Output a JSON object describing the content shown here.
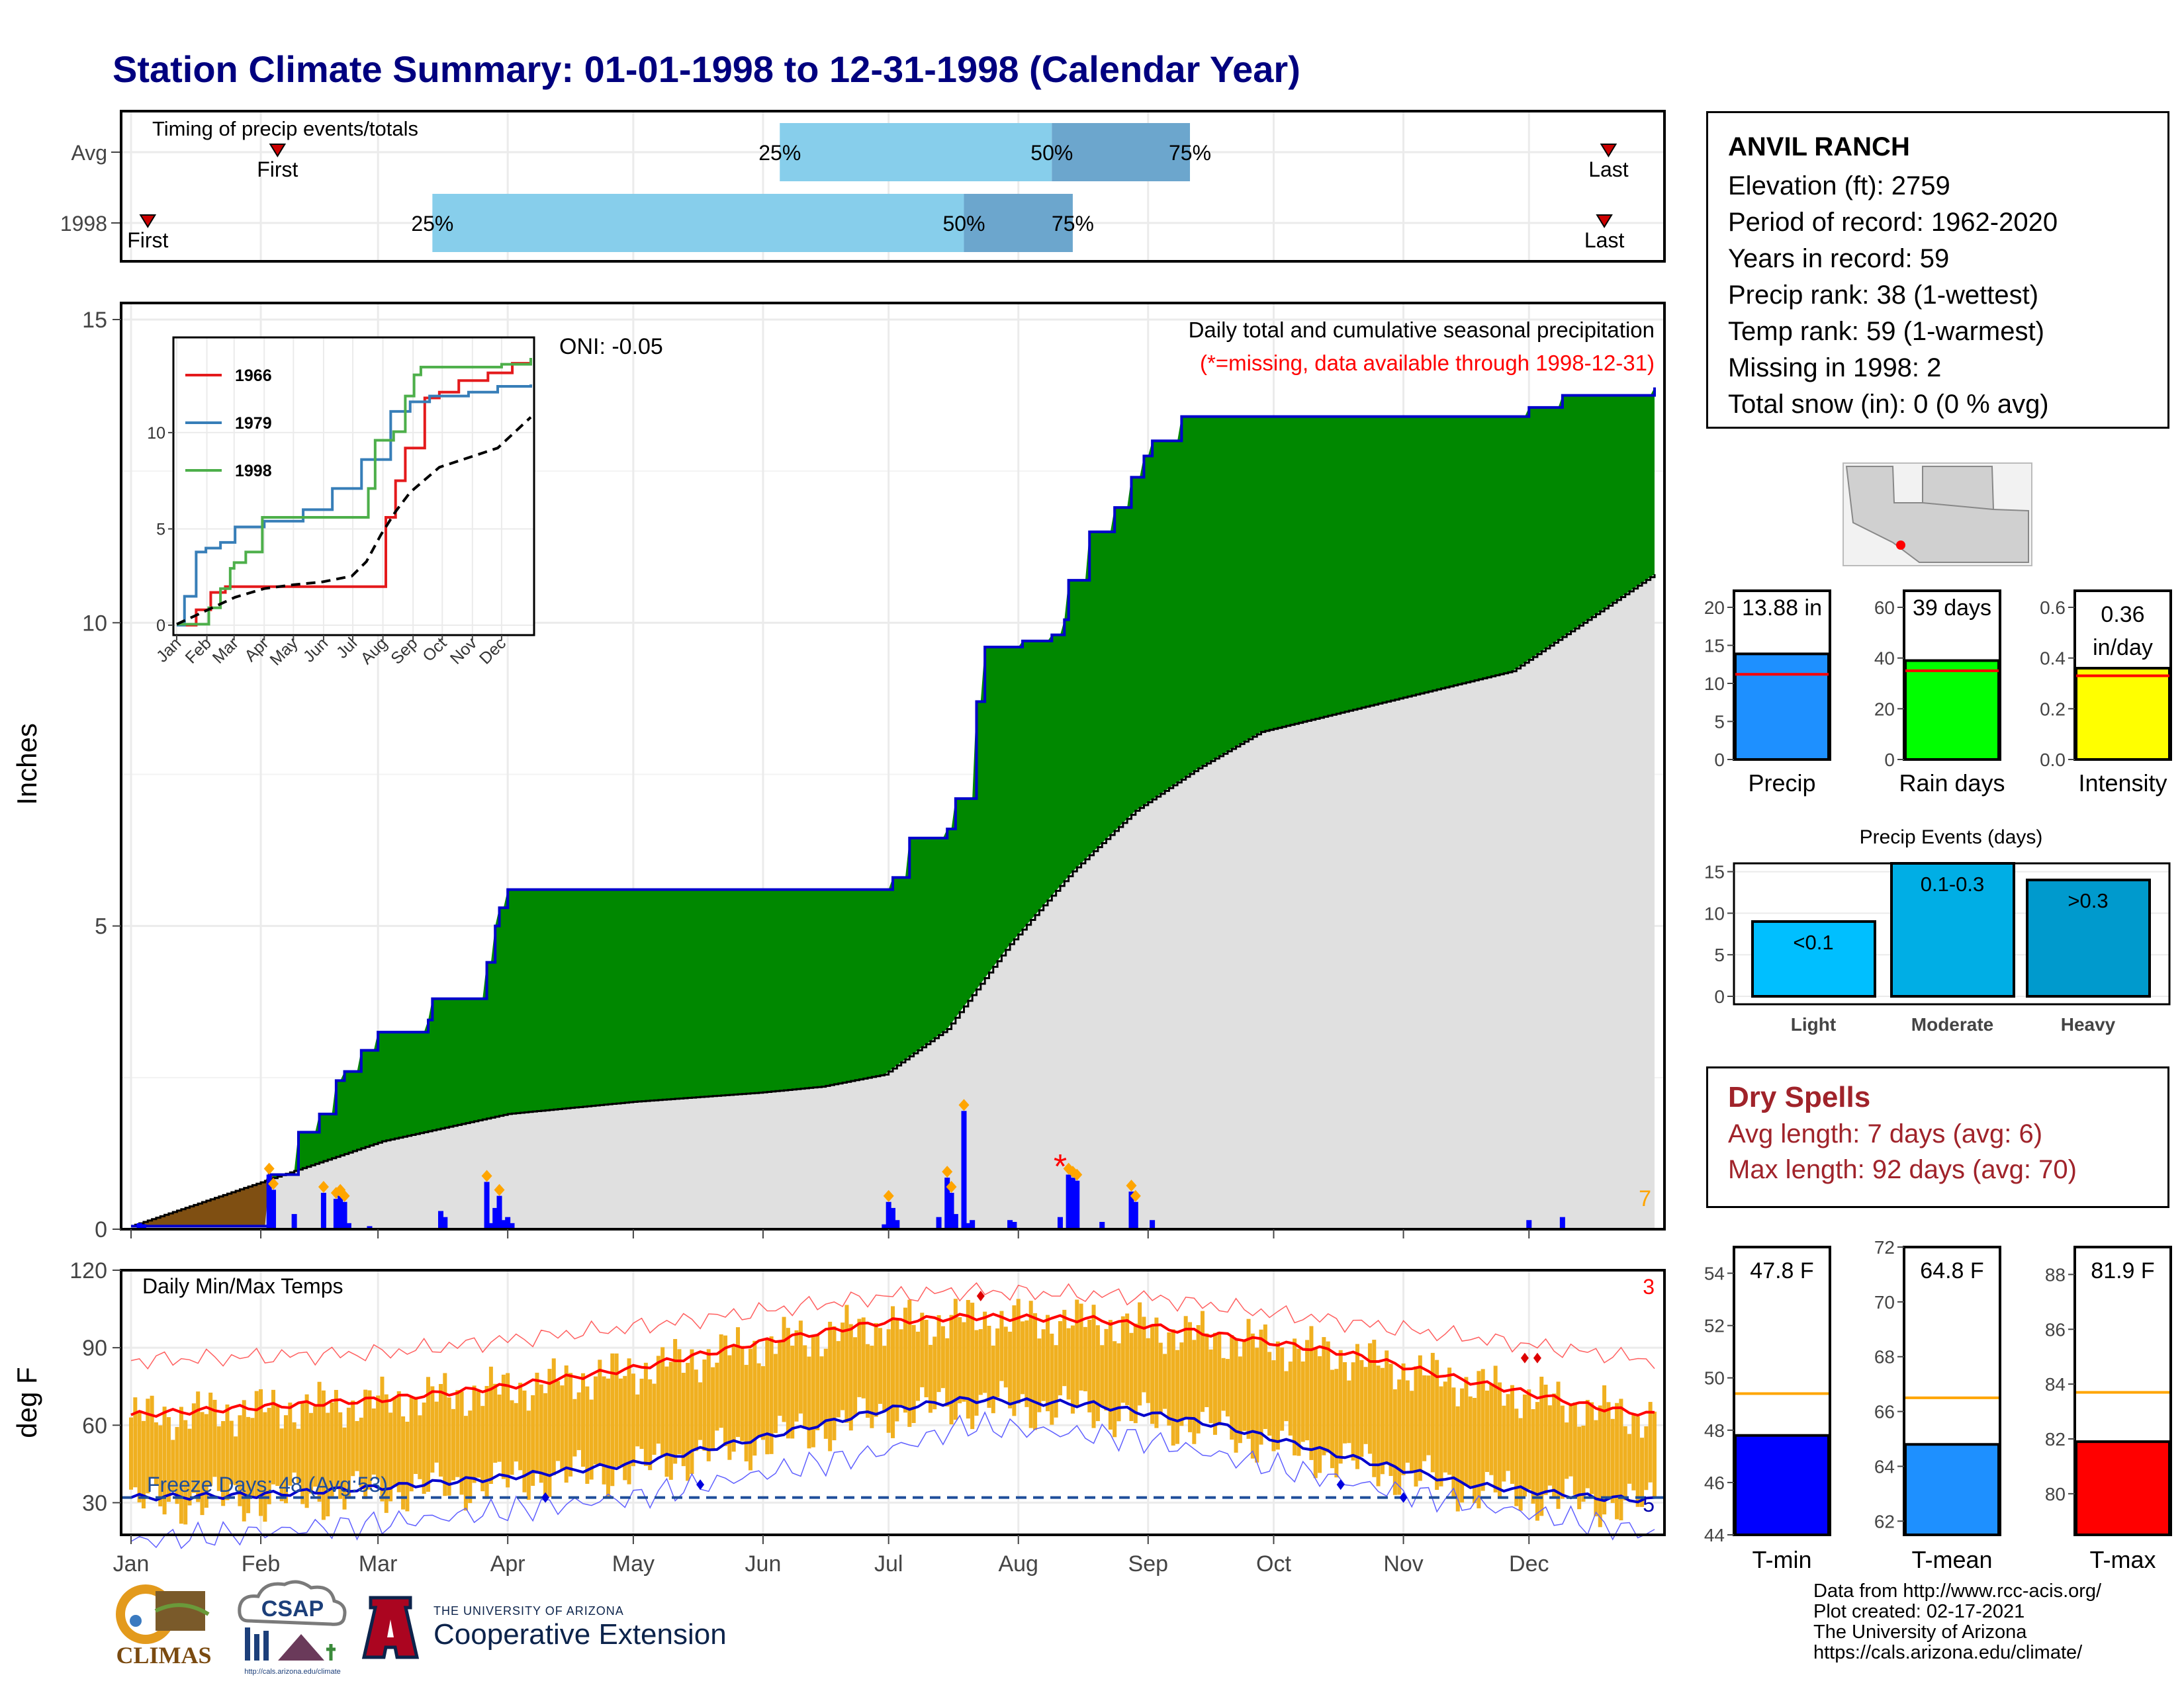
{
  "title": "Station Climate Summary: 01-01-1998 to 12-31-1998 (Calendar Year)",
  "colors": {
    "title": "#00007f",
    "precip_green": "#008800",
    "precip_line": "#0000cc",
    "avg_gray": "#e0e0e0",
    "brown": "#7f4f12",
    "temp_bar": "#f0b020",
    "tmax_line": "#ff0000",
    "tmin_line": "#0000cc",
    "precip_blue": "#1e90ff",
    "raindays_green": "#00ff00",
    "intensity_yellow": "#ffff00",
    "dry_red": "#a0232a"
  },
  "timing": {
    "label": "Timing of precip events/totals",
    "rows": [
      {
        "label": "Avg",
        "first_label": "First",
        "last_label": "Last",
        "first_day": 35,
        "last_day": 353,
        "p25_label": "25%",
        "p50_label": "50%",
        "p75_label": "75%",
        "p25": 155,
        "p50": 220,
        "p75": 253
      },
      {
        "label": "1998",
        "first_label": "First",
        "last_label": "Last",
        "first_day": 4,
        "last_day": 352,
        "p25_label": "25%",
        "p50_label": "50%",
        "p75_label": "75%",
        "p25": 72,
        "p50": 199,
        "p75": 225
      }
    ]
  },
  "station": {
    "name": "ANVIL RANCH",
    "lines": [
      "Elevation (ft): 2759",
      "Period of record: 1962-2020",
      "Years in record: 59",
      "Precip rank: 38 (1-wettest)",
      "Temp rank: 59 (1-warmest)",
      "Missing in 1998: 2",
      "Total snow (in): 0 (0 % avg)"
    ]
  },
  "chart_data": [
    {
      "type": "area",
      "ylabel": "Inches",
      "ylim": [
        0,
        15
      ],
      "yticks": [
        "0",
        "5",
        "10",
        "15"
      ],
      "annotation_title": "Daily total and cumulative seasonal precipitation",
      "annotation_missing": "(*=missing, data available through 1998-12-31)",
      "oni_label": "ONI: -0.05",
      "corner_count": "7",
      "cumulative_1998": {
        "day": [
          0,
          33,
          40,
          45,
          49,
          51,
          55,
          59,
          65,
          71,
          72,
          85,
          87,
          88,
          90,
          180,
          182,
          186,
          195,
          197,
          202,
          204,
          213,
          220,
          223,
          224,
          229,
          235,
          239,
          242,
          244,
          251,
          334,
          342,
          364
        ],
        "inches": [
          0.05,
          0.9,
          1.6,
          1.9,
          2.45,
          2.6,
          2.95,
          3.25,
          3.25,
          3.45,
          3.8,
          4.4,
          5.0,
          5.3,
          5.6,
          5.6,
          5.8,
          6.45,
          6.6,
          7.1,
          8.7,
          9.6,
          9.7,
          9.8,
          10.05,
          10.7,
          11.5,
          11.9,
          12.4,
          12.75,
          13.0,
          13.4,
          13.55,
          13.75,
          13.88
        ]
      },
      "cumulative_avg": {
        "day": [
          0,
          30,
          60,
          90,
          120,
          150,
          165,
          180,
          195,
          210,
          225,
          240,
          255,
          270,
          300,
          330,
          364
        ],
        "inches": [
          0.05,
          0.75,
          1.45,
          1.9,
          2.1,
          2.25,
          2.35,
          2.55,
          3.3,
          4.7,
          5.9,
          6.9,
          7.6,
          8.2,
          8.7,
          9.2,
          10.8
        ]
      },
      "daily_bars": {
        "day": [
          2,
          3,
          33,
          34,
          39,
          46,
          49,
          50,
          51,
          52,
          57,
          74,
          75,
          85,
          86,
          87,
          88,
          89,
          90,
          91,
          180,
          181,
          182,
          183,
          193,
          195,
          196,
          197,
          199,
          200,
          201,
          210,
          211,
          222,
          224,
          225,
          226,
          232,
          239,
          240,
          244,
          334,
          342
        ],
        "inches": [
          0.1,
          0.08,
          0.9,
          0.65,
          0.25,
          0.6,
          0.5,
          0.55,
          0.45,
          0.1,
          0.05,
          0.3,
          0.2,
          0.78,
          0.1,
          0.35,
          0.55,
          0.15,
          0.2,
          0.1,
          0.08,
          0.45,
          0.35,
          0.15,
          0.2,
          0.85,
          0.6,
          0.25,
          1.95,
          0.1,
          0.15,
          0.15,
          0.12,
          0.2,
          0.9,
          0.85,
          0.8,
          0.12,
          0.62,
          0.45,
          0.15,
          0.15,
          0.2
        ]
      },
      "missing_marker_day": 222,
      "xticks": [
        "Jan",
        "Feb",
        "Mar",
        "Apr",
        "May",
        "Jun",
        "Jul",
        "Aug",
        "Sep",
        "Oct",
        "Nov",
        "Dec"
      ]
    },
    {
      "type": "line",
      "title": "",
      "legend": [
        "1966",
        "1979",
        "1998"
      ],
      "legend_colors": [
        "#e41a1c",
        "#377eb8",
        "#4daf4a"
      ],
      "yticks": [
        "0",
        "5",
        "10"
      ],
      "xticks": [
        "Jan",
        "Feb",
        "Mar",
        "Apr",
        "May",
        "Jun",
        "Jul",
        "Aug",
        "Sep",
        "Oct",
        "Nov",
        "Dec"
      ],
      "series": [
        {
          "name": "1966",
          "day": [
            0,
            20,
            35,
            50,
            60,
            200,
            215,
            225,
            235,
            255,
            270,
            290,
            320,
            345,
            364
          ],
          "inches": [
            0,
            0.8,
            1.7,
            2.0,
            2.0,
            2.0,
            5.6,
            7.5,
            9.2,
            11.8,
            12.1,
            12.7,
            13.1,
            13.6,
            13.8
          ]
        },
        {
          "name": "1979",
          "day": [
            0,
            8,
            20,
            30,
            45,
            60,
            90,
            130,
            160,
            190,
            220,
            240,
            260,
            300,
            330,
            364
          ],
          "inches": [
            0,
            1.5,
            3.8,
            4.0,
            4.3,
            5.1,
            5.4,
            6.0,
            7.1,
            8.6,
            11.1,
            11.6,
            11.9,
            12.1,
            12.4,
            12.5
          ]
        },
        {
          "name": "1998",
          "day": [
            0,
            33,
            45,
            55,
            59,
            71,
            88,
            180,
            197,
            204,
            223,
            235,
            244,
            251,
            334,
            364
          ],
          "inches": [
            0.05,
            0.9,
            1.9,
            2.95,
            3.25,
            3.8,
            5.6,
            5.6,
            7.1,
            9.6,
            10.05,
            11.9,
            13.0,
            13.4,
            13.55,
            13.88
          ]
        },
        {
          "name": "Average",
          "day": [
            0,
            30,
            60,
            90,
            120,
            150,
            180,
            195,
            210,
            225,
            240,
            270,
            300,
            330,
            364
          ],
          "inches": [
            0.05,
            0.75,
            1.45,
            1.9,
            2.1,
            2.25,
            2.55,
            3.3,
            4.7,
            5.9,
            6.9,
            8.2,
            8.7,
            9.2,
            10.8
          ]
        }
      ]
    },
    {
      "type": "bar",
      "categories": [
        "Precip",
        "Rain days",
        "Intensity"
      ],
      "labels": [
        "13.88 in",
        "39 days",
        "0.36 in/day"
      ],
      "values": [
        13.88,
        39,
        0.36
      ],
      "averages": [
        11.2,
        35,
        0.33
      ],
      "ylims": [
        [
          0,
          20
        ],
        [
          0,
          60
        ],
        [
          0,
          0.6
        ]
      ],
      "yticks": [
        [
          "0",
          "5",
          "10",
          "15",
          "20"
        ],
        [
          "0",
          "20",
          "40",
          "60"
        ],
        [
          "0.0",
          "0.2",
          "0.4",
          "0.6"
        ]
      ]
    },
    {
      "type": "bar",
      "title": "Precip Events (days)",
      "categories": [
        "Light",
        "Moderate",
        "Heavy"
      ],
      "bar_labels": [
        "<0.1",
        "0.1-0.3",
        ">0.3"
      ],
      "values": [
        9,
        16,
        14
      ],
      "ylim": [
        0,
        16
      ],
      "yticks": [
        "0",
        "5",
        "10",
        "15"
      ]
    },
    {
      "type": "area",
      "title": "Daily Min/Max Temps",
      "ylabel": "deg F",
      "ylim": [
        15,
        120
      ],
      "yticks": [
        "30",
        "60",
        "90",
        "120"
      ],
      "freeze_label": "Freeze Days: 48 (Avg:53)",
      "count_top": "3",
      "count_bottom": "5",
      "freeze_line": 32,
      "avg_tmax": {
        "day": [
          0,
          30,
          60,
          90,
          120,
          150,
          180,
          200,
          230,
          260,
          290,
          320,
          350,
          364
        ],
        "degf": [
          64,
          67,
          70,
          75,
          82,
          92,
          100,
          102,
          101,
          95,
          88,
          77,
          67,
          64
        ]
      },
      "avg_tmin": {
        "day": [
          0,
          30,
          60,
          90,
          120,
          150,
          180,
          200,
          230,
          260,
          290,
          320,
          350,
          364
        ],
        "degf": [
          32,
          33,
          36,
          40,
          45,
          55,
          66,
          70,
          68,
          60,
          48,
          37,
          32,
          31
        ]
      },
      "record_tmax": {
        "day": [
          0,
          60,
          120,
          180,
          200,
          240,
          300,
          364
        ],
        "degf": [
          85,
          88,
          98,
          110,
          112,
          110,
          98,
          85
        ]
      },
      "record_tmin": {
        "day": [
          0,
          60,
          120,
          180,
          200,
          240,
          300,
          364
        ],
        "degf": [
          15,
          22,
          32,
          50,
          60,
          55,
          35,
          18
        ]
      },
      "xticks": [
        "Jan",
        "Feb",
        "Mar",
        "Apr",
        "May",
        "Jun",
        "Jul",
        "Aug",
        "Sep",
        "Oct",
        "Nov",
        "Dec"
      ]
    },
    {
      "type": "bar",
      "categories": [
        "T-min",
        "T-mean",
        "T-max"
      ],
      "labels": [
        "47.8 F",
        "64.8 F",
        "81.9 F"
      ],
      "values": [
        47.8,
        64.8,
        81.9
      ],
      "averages": [
        49.4,
        66.5,
        83.7
      ],
      "ylims": [
        [
          44,
          55
        ],
        [
          61.5,
          72
        ],
        [
          78.5,
          89
        ]
      ],
      "yticks": [
        [
          "44",
          "46",
          "48",
          "50",
          "52",
          "54"
        ],
        [
          "62",
          "64",
          "66",
          "68",
          "70",
          "72"
        ],
        [
          "80",
          "82",
          "84",
          "86",
          "88"
        ]
      ]
    }
  ],
  "dry_spells": {
    "title": "Dry Spells",
    "avg_line": "Avg length: 7 days (avg: 6)",
    "max_line": "Max length: 92 days (avg: 70)"
  },
  "credits": [
    "Data from http://www.rcc-acis.org/",
    "Plot created: 02-17-2021",
    "The University of Arizona",
    "https://cals.arizona.edu/climate/"
  ],
  "logos": {
    "climas": "CLIMAS",
    "csap": "CSAP",
    "csap_url": "http://cals.arizona.edu/climate",
    "ua_small": "THE UNIVERSITY OF ARIZONA",
    "ua_big": "Cooperative Extension"
  }
}
